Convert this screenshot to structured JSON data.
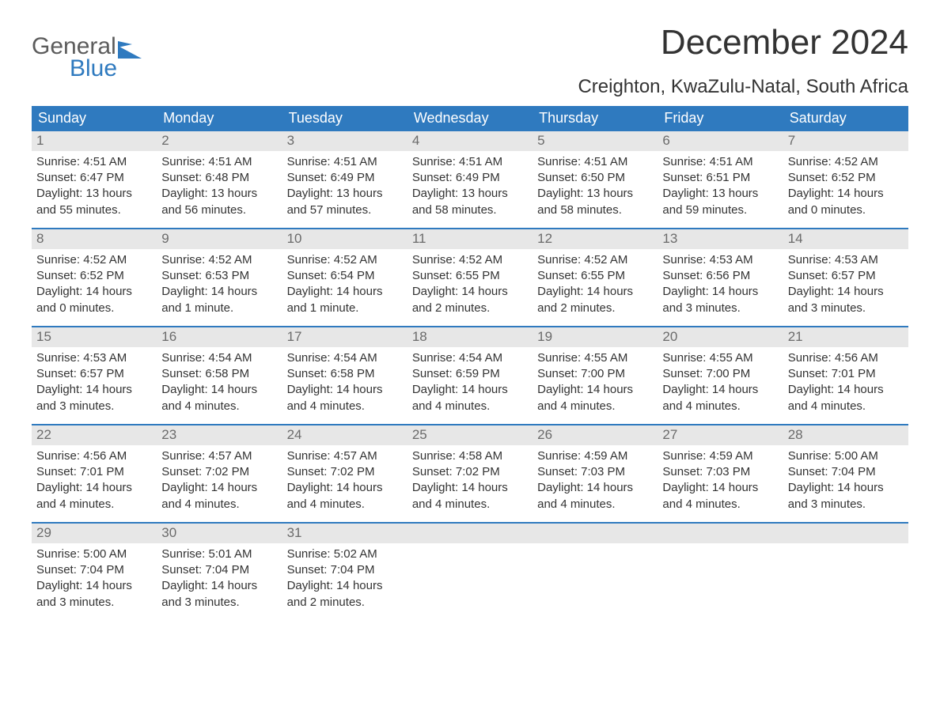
{
  "logo": {
    "text1": "General",
    "text2": "Blue",
    "accent_color": "#2f7abf",
    "grey_color": "#5c5c5c"
  },
  "header": {
    "month_title": "December 2024",
    "location": "Creighton, KwaZulu-Natal, South Africa"
  },
  "colors": {
    "header_bg": "#2f7abf",
    "header_text": "#ffffff",
    "daynum_bg": "#e7e7e7",
    "daynum_text": "#6b6b6b",
    "body_text": "#333333",
    "week_divider": "#2f7abf",
    "page_bg": "#ffffff"
  },
  "typography": {
    "month_title_fontsize": 44,
    "location_fontsize": 24,
    "dow_fontsize": 18,
    "daynum_fontsize": 17,
    "body_fontsize": 15
  },
  "days_of_week": [
    "Sunday",
    "Monday",
    "Tuesday",
    "Wednesday",
    "Thursday",
    "Friday",
    "Saturday"
  ],
  "weeks": [
    [
      {
        "num": "1",
        "sunrise": "Sunrise: 4:51 AM",
        "sunset": "Sunset: 6:47 PM",
        "daylight1": "Daylight: 13 hours",
        "daylight2": "and 55 minutes."
      },
      {
        "num": "2",
        "sunrise": "Sunrise: 4:51 AM",
        "sunset": "Sunset: 6:48 PM",
        "daylight1": "Daylight: 13 hours",
        "daylight2": "and 56 minutes."
      },
      {
        "num": "3",
        "sunrise": "Sunrise: 4:51 AM",
        "sunset": "Sunset: 6:49 PM",
        "daylight1": "Daylight: 13 hours",
        "daylight2": "and 57 minutes."
      },
      {
        "num": "4",
        "sunrise": "Sunrise: 4:51 AM",
        "sunset": "Sunset: 6:49 PM",
        "daylight1": "Daylight: 13 hours",
        "daylight2": "and 58 minutes."
      },
      {
        "num": "5",
        "sunrise": "Sunrise: 4:51 AM",
        "sunset": "Sunset: 6:50 PM",
        "daylight1": "Daylight: 13 hours",
        "daylight2": "and 58 minutes."
      },
      {
        "num": "6",
        "sunrise": "Sunrise: 4:51 AM",
        "sunset": "Sunset: 6:51 PM",
        "daylight1": "Daylight: 13 hours",
        "daylight2": "and 59 minutes."
      },
      {
        "num": "7",
        "sunrise": "Sunrise: 4:52 AM",
        "sunset": "Sunset: 6:52 PM",
        "daylight1": "Daylight: 14 hours",
        "daylight2": "and 0 minutes."
      }
    ],
    [
      {
        "num": "8",
        "sunrise": "Sunrise: 4:52 AM",
        "sunset": "Sunset: 6:52 PM",
        "daylight1": "Daylight: 14 hours",
        "daylight2": "and 0 minutes."
      },
      {
        "num": "9",
        "sunrise": "Sunrise: 4:52 AM",
        "sunset": "Sunset: 6:53 PM",
        "daylight1": "Daylight: 14 hours",
        "daylight2": "and 1 minute."
      },
      {
        "num": "10",
        "sunrise": "Sunrise: 4:52 AM",
        "sunset": "Sunset: 6:54 PM",
        "daylight1": "Daylight: 14 hours",
        "daylight2": "and 1 minute."
      },
      {
        "num": "11",
        "sunrise": "Sunrise: 4:52 AM",
        "sunset": "Sunset: 6:55 PM",
        "daylight1": "Daylight: 14 hours",
        "daylight2": "and 2 minutes."
      },
      {
        "num": "12",
        "sunrise": "Sunrise: 4:52 AM",
        "sunset": "Sunset: 6:55 PM",
        "daylight1": "Daylight: 14 hours",
        "daylight2": "and 2 minutes."
      },
      {
        "num": "13",
        "sunrise": "Sunrise: 4:53 AM",
        "sunset": "Sunset: 6:56 PM",
        "daylight1": "Daylight: 14 hours",
        "daylight2": "and 3 minutes."
      },
      {
        "num": "14",
        "sunrise": "Sunrise: 4:53 AM",
        "sunset": "Sunset: 6:57 PM",
        "daylight1": "Daylight: 14 hours",
        "daylight2": "and 3 minutes."
      }
    ],
    [
      {
        "num": "15",
        "sunrise": "Sunrise: 4:53 AM",
        "sunset": "Sunset: 6:57 PM",
        "daylight1": "Daylight: 14 hours",
        "daylight2": "and 3 minutes."
      },
      {
        "num": "16",
        "sunrise": "Sunrise: 4:54 AM",
        "sunset": "Sunset: 6:58 PM",
        "daylight1": "Daylight: 14 hours",
        "daylight2": "and 4 minutes."
      },
      {
        "num": "17",
        "sunrise": "Sunrise: 4:54 AM",
        "sunset": "Sunset: 6:58 PM",
        "daylight1": "Daylight: 14 hours",
        "daylight2": "and 4 minutes."
      },
      {
        "num": "18",
        "sunrise": "Sunrise: 4:54 AM",
        "sunset": "Sunset: 6:59 PM",
        "daylight1": "Daylight: 14 hours",
        "daylight2": "and 4 minutes."
      },
      {
        "num": "19",
        "sunrise": "Sunrise: 4:55 AM",
        "sunset": "Sunset: 7:00 PM",
        "daylight1": "Daylight: 14 hours",
        "daylight2": "and 4 minutes."
      },
      {
        "num": "20",
        "sunrise": "Sunrise: 4:55 AM",
        "sunset": "Sunset: 7:00 PM",
        "daylight1": "Daylight: 14 hours",
        "daylight2": "and 4 minutes."
      },
      {
        "num": "21",
        "sunrise": "Sunrise: 4:56 AM",
        "sunset": "Sunset: 7:01 PM",
        "daylight1": "Daylight: 14 hours",
        "daylight2": "and 4 minutes."
      }
    ],
    [
      {
        "num": "22",
        "sunrise": "Sunrise: 4:56 AM",
        "sunset": "Sunset: 7:01 PM",
        "daylight1": "Daylight: 14 hours",
        "daylight2": "and 4 minutes."
      },
      {
        "num": "23",
        "sunrise": "Sunrise: 4:57 AM",
        "sunset": "Sunset: 7:02 PM",
        "daylight1": "Daylight: 14 hours",
        "daylight2": "and 4 minutes."
      },
      {
        "num": "24",
        "sunrise": "Sunrise: 4:57 AM",
        "sunset": "Sunset: 7:02 PM",
        "daylight1": "Daylight: 14 hours",
        "daylight2": "and 4 minutes."
      },
      {
        "num": "25",
        "sunrise": "Sunrise: 4:58 AM",
        "sunset": "Sunset: 7:02 PM",
        "daylight1": "Daylight: 14 hours",
        "daylight2": "and 4 minutes."
      },
      {
        "num": "26",
        "sunrise": "Sunrise: 4:59 AM",
        "sunset": "Sunset: 7:03 PM",
        "daylight1": "Daylight: 14 hours",
        "daylight2": "and 4 minutes."
      },
      {
        "num": "27",
        "sunrise": "Sunrise: 4:59 AM",
        "sunset": "Sunset: 7:03 PM",
        "daylight1": "Daylight: 14 hours",
        "daylight2": "and 4 minutes."
      },
      {
        "num": "28",
        "sunrise": "Sunrise: 5:00 AM",
        "sunset": "Sunset: 7:04 PM",
        "daylight1": "Daylight: 14 hours",
        "daylight2": "and 3 minutes."
      }
    ],
    [
      {
        "num": "29",
        "sunrise": "Sunrise: 5:00 AM",
        "sunset": "Sunset: 7:04 PM",
        "daylight1": "Daylight: 14 hours",
        "daylight2": "and 3 minutes."
      },
      {
        "num": "30",
        "sunrise": "Sunrise: 5:01 AM",
        "sunset": "Sunset: 7:04 PM",
        "daylight1": "Daylight: 14 hours",
        "daylight2": "and 3 minutes."
      },
      {
        "num": "31",
        "sunrise": "Sunrise: 5:02 AM",
        "sunset": "Sunset: 7:04 PM",
        "daylight1": "Daylight: 14 hours",
        "daylight2": "and 2 minutes."
      },
      {
        "empty": true
      },
      {
        "empty": true
      },
      {
        "empty": true
      },
      {
        "empty": true
      }
    ]
  ]
}
